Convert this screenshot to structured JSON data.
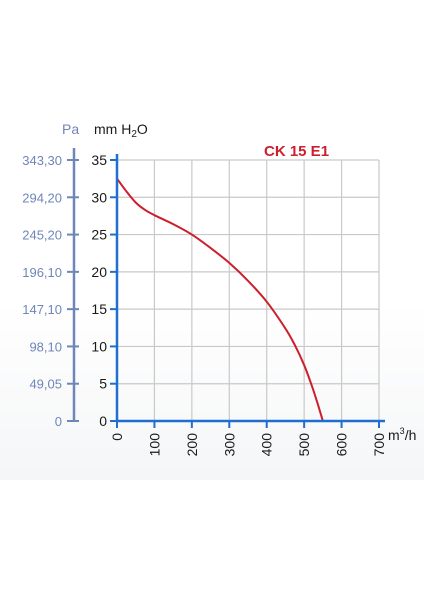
{
  "chart_data": {
    "type": "line",
    "title": "CK 15 E1",
    "title_color": "#cc1f2b",
    "curve_color": "#cc1f2b",
    "axis_color": "#1f6fd1",
    "grid_color": "#c9c9c9",
    "pa_color": "#6f86b8",
    "x_unit_base": "m",
    "x_unit_sup": "3",
    "x_unit_suffix": "/h",
    "y_unit_pa": "Pa",
    "y_unit_mm": "mm H",
    "y_unit_mm_sub": "2",
    "y_unit_mm_suffix": "O",
    "xlim": [
      0,
      700
    ],
    "ylim": [
      0,
      35
    ],
    "x_ticks": [
      "0",
      "100",
      "200",
      "300",
      "400",
      "500",
      "600",
      "700"
    ],
    "x_tick_values": [
      0,
      100,
      200,
      300,
      400,
      500,
      600,
      700
    ],
    "y_ticks_mm": [
      "0",
      "5",
      "10",
      "15",
      "20",
      "25",
      "30",
      "35"
    ],
    "y_tick_values": [
      0,
      5,
      10,
      15,
      20,
      25,
      30,
      35
    ],
    "y_ticks_pa": [
      "0",
      "49,05",
      "98,10",
      "147,10",
      "196,10",
      "245,20",
      "294,20",
      "343,30"
    ],
    "grid": true,
    "series": [
      {
        "x": [
          0,
          25,
          50,
          75,
          100,
          150,
          200,
          250,
          300,
          350,
          400,
          450,
          475,
          500,
          520,
          535,
          550
        ],
        "y": [
          32.5,
          30.8,
          29.3,
          28.3,
          27.6,
          26.4,
          25.0,
          23.2,
          21.2,
          18.8,
          16.0,
          12.4,
          10.2,
          7.5,
          4.8,
          2.5,
          0
        ]
      }
    ]
  }
}
